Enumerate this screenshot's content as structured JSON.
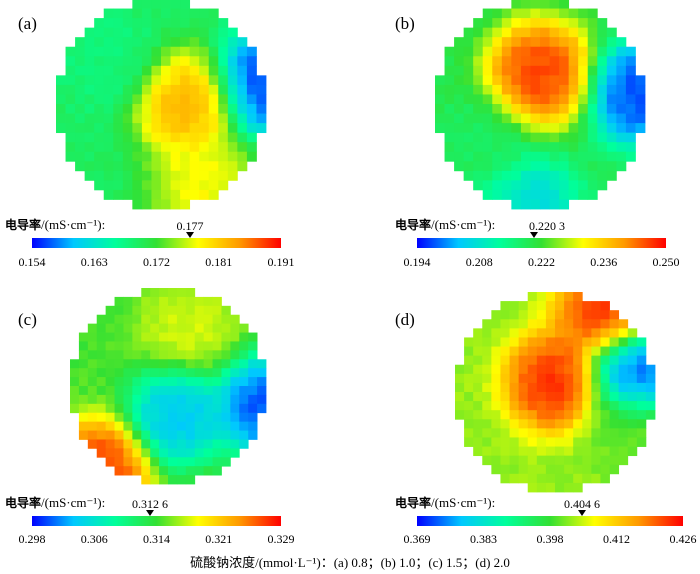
{
  "colorbar_title_cjk": "电导率",
  "colorbar_title_unit": "/(mS·cm⁻¹):",
  "caption": "硫酸钠浓度/(mmol·L⁻¹)：(a) 0.8；(b) 1.0；(c) 1.5；(d) 2.0",
  "colormap": [
    "#0000ff",
    "#00c8ff",
    "#00ff9b",
    "#33e033",
    "#ffff00",
    "#ff9900",
    "#ff0000"
  ],
  "chart_data": [
    {
      "type": "heatmap",
      "label": "(a)",
      "marker_value": "0.177",
      "ticks": [
        "0.154",
        "0.163",
        "0.172",
        "0.181",
        "0.191"
      ],
      "range": [
        0.154,
        0.191
      ],
      "hot_spots": [
        {
          "cx": 0.62,
          "cy": 0.5,
          "value": 0.185
        },
        {
          "cx": 0.7,
          "cy": 0.88,
          "value": 0.18
        },
        {
          "cx": 1.0,
          "cy": 0.4,
          "value": 0.154
        },
        {
          "cx": 0.25,
          "cy": 0.3,
          "value": 0.168
        }
      ],
      "base_value": 0.17
    },
    {
      "type": "heatmap",
      "label": "(b)",
      "marker_value": "0.220 3",
      "ticks": [
        "0.194",
        "0.208",
        "0.222",
        "0.236",
        "0.250"
      ],
      "range": [
        0.194,
        0.25
      ],
      "hot_spots": [
        {
          "cx": 0.5,
          "cy": 0.35,
          "value": 0.25
        },
        {
          "cx": 0.98,
          "cy": 0.45,
          "value": 0.194
        },
        {
          "cx": 0.45,
          "cy": 1.0,
          "value": 0.205
        },
        {
          "cx": 0.2,
          "cy": 0.7,
          "value": 0.218
        }
      ],
      "base_value": 0.22
    },
    {
      "type": "heatmap",
      "label": "(c)",
      "marker_value": "0.312 6",
      "ticks": [
        "0.298",
        "0.306",
        "0.314",
        "0.321",
        "0.329"
      ],
      "range": [
        0.298,
        0.329
      ],
      "hot_spots": [
        {
          "cx": 0.55,
          "cy": 0.65,
          "value": 0.302
        },
        {
          "cx": 0.15,
          "cy": 0.92,
          "value": 0.329
        },
        {
          "cx": 1.0,
          "cy": 0.6,
          "value": 0.298
        },
        {
          "cx": 0.6,
          "cy": 0.2,
          "value": 0.318
        }
      ],
      "base_value": 0.314
    },
    {
      "type": "heatmap",
      "label": "(d)",
      "marker_value": "0.404 6",
      "ticks": [
        "0.369",
        "0.383",
        "0.398",
        "0.412",
        "0.426"
      ],
      "range": [
        0.369,
        0.426
      ],
      "hot_spots": [
        {
          "cx": 0.5,
          "cy": 0.45,
          "value": 0.426
        },
        {
          "cx": 0.9,
          "cy": 0.4,
          "value": 0.369
        },
        {
          "cx": 0.75,
          "cy": 0.1,
          "value": 0.426
        },
        {
          "cx": 0.85,
          "cy": 0.7,
          "value": 0.4
        }
      ],
      "base_value": 0.402
    }
  ]
}
